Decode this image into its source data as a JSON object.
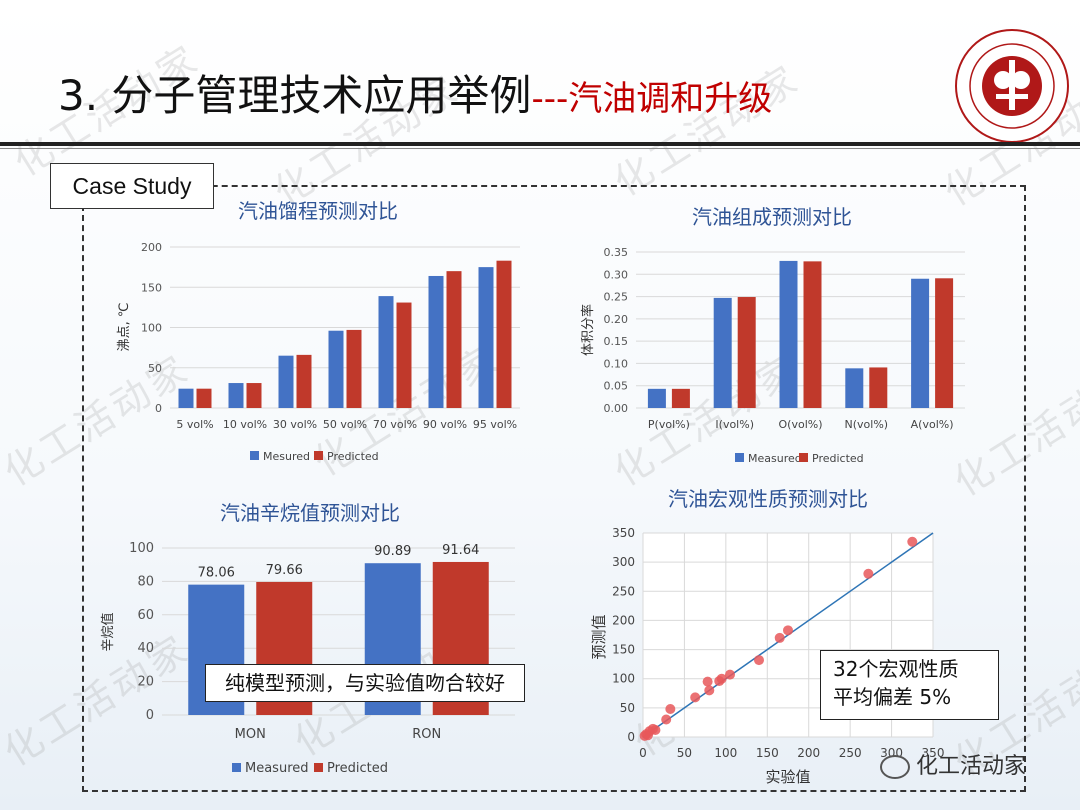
{
  "header": {
    "title_main": "3. 分子管理技术应用举例",
    "title_sub": "---汽油调和升级",
    "case_label": "Case Study",
    "watermark": "化工活动家",
    "footer_brand": "化工活动家"
  },
  "colors": {
    "measured": "#4472c4",
    "predicted": "#c0392b",
    "fit_line": "#2e75b6",
    "scatter": "#e8585a"
  },
  "chart_data": [
    {
      "type": "bar",
      "title": "汽油馏程预测对比",
      "ylabel": "沸点, ℃",
      "ylim": [
        0,
        200
      ],
      "yticks": [
        "0",
        "50",
        "100",
        "150",
        "200"
      ],
      "categories": [
        "5 vol%",
        "10 vol%",
        "30 vol%",
        "50 vol%",
        "70 vol%",
        "90 vol%",
        "95 vol%"
      ],
      "series": [
        {
          "name": "Mesured",
          "values": [
            24,
            31,
            65,
            96,
            139,
            164,
            175
          ]
        },
        {
          "name": "Predicted",
          "values": [
            24,
            31,
            66,
            97,
            131,
            170,
            183
          ]
        }
      ],
      "legend": "bottom"
    },
    {
      "type": "bar",
      "title": "汽油组成预测对比",
      "ylabel": "体积分率",
      "ylim": [
        0,
        0.35
      ],
      "yticks": [
        "0.00",
        "0.05",
        "0.10",
        "0.15",
        "0.20",
        "0.25",
        "0.30",
        "0.35"
      ],
      "categories": [
        "P(vol%)",
        "I(vol%)",
        "O(vol%)",
        "N(vol%)",
        "A(vol%)"
      ],
      "series": [
        {
          "name": "Measured",
          "values": [
            0.043,
            0.247,
            0.33,
            0.089,
            0.29
          ]
        },
        {
          "name": "Predicted",
          "values": [
            0.043,
            0.249,
            0.329,
            0.091,
            0.291
          ]
        }
      ],
      "legend": "bottom"
    },
    {
      "type": "bar",
      "title": "汽油辛烷值预测对比",
      "ylabel": "辛烷值",
      "ylim": [
        0,
        100
      ],
      "yticks": [
        "0",
        "20",
        "40",
        "60",
        "80",
        "100"
      ],
      "categories": [
        "MON",
        "RON"
      ],
      "series": [
        {
          "name": "Measured",
          "values": [
            78.06,
            90.89
          ],
          "labels": [
            "78.06",
            "90.89"
          ]
        },
        {
          "name": "Predicted",
          "values": [
            79.66,
            91.64
          ],
          "labels": [
            "79.66",
            "91.64"
          ]
        }
      ],
      "legend": "bottom",
      "annotation": "纯模型预测，与实验值吻合较好"
    },
    {
      "type": "scatter",
      "title": "汽油宏观性质预测对比",
      "xlabel": "实验值",
      "ylabel": "预测值",
      "xlim": [
        0,
        350
      ],
      "ylim": [
        0,
        350
      ],
      "xticks": [
        "0",
        "50",
        "100",
        "150",
        "200",
        "250",
        "300",
        "350"
      ],
      "yticks": [
        "0",
        "50",
        "100",
        "150",
        "200",
        "250",
        "300",
        "350"
      ],
      "points": [
        [
          2,
          2
        ],
        [
          4,
          5
        ],
        [
          6,
          3
        ],
        [
          8,
          10
        ],
        [
          12,
          14
        ],
        [
          15,
          12
        ],
        [
          28,
          30
        ],
        [
          33,
          48
        ],
        [
          63,
          68
        ],
        [
          78,
          95
        ],
        [
          80,
          80
        ],
        [
          92,
          96
        ],
        [
          95,
          100
        ],
        [
          105,
          107
        ],
        [
          140,
          132
        ],
        [
          165,
          170
        ],
        [
          175,
          183
        ],
        [
          272,
          280
        ],
        [
          325,
          335
        ]
      ],
      "fit_line": [
        [
          0,
          0
        ],
        [
          350,
          350
        ]
      ],
      "annotation_line1": "32个宏观性质",
      "annotation_line2": "平均偏差 5%"
    }
  ]
}
